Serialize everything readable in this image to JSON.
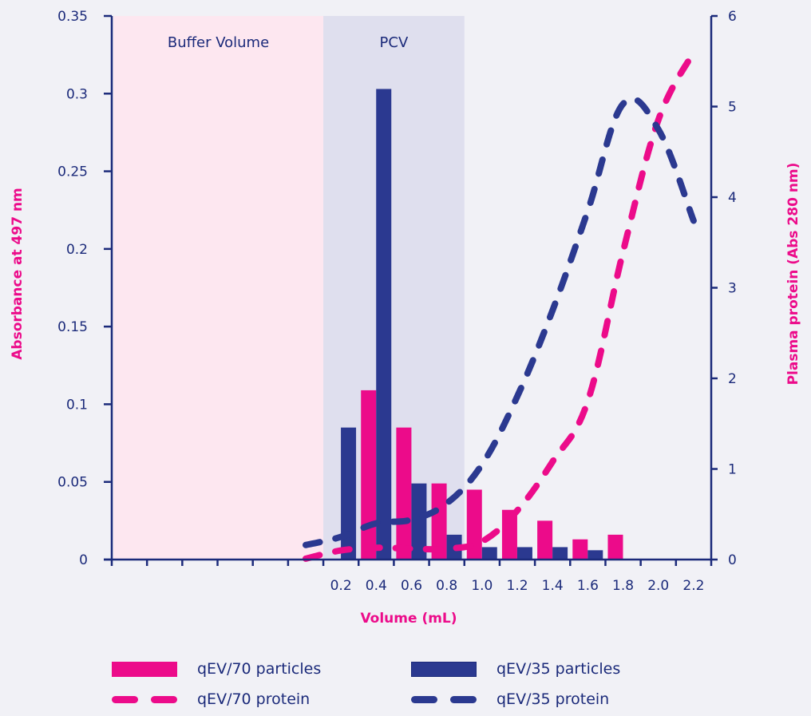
{
  "chart_data": {
    "type": "bar+line",
    "title": "",
    "xlabel": "Volume (mL)",
    "ylabel_left": "Absorbance at 497 nm",
    "ylabel_right": "Plasma protein (Abs 280 nm)",
    "ylim_left": [
      0,
      0.35
    ],
    "ylim_right": [
      0,
      6
    ],
    "yticks_left": [
      "0",
      "0.05",
      "0.1",
      "0.15",
      "0.2",
      "0.25",
      "0.3",
      "0.35"
    ],
    "yticks_right": [
      "0",
      "1",
      "2",
      "3",
      "4",
      "5",
      "6"
    ],
    "grid": false,
    "legend_position": "bottom",
    "categories": [
      "",
      "",
      "",
      "",
      "",
      "",
      "0.2",
      "0.4",
      "0.6",
      "0.8",
      "1.0",
      "1.2",
      "1.4",
      "1.6",
      "1.8",
      "2.0",
      "2.2"
    ],
    "regions": [
      {
        "label": "Buffer Volume",
        "from_slot": 0,
        "to_slot": 6,
        "color": "#fde7f0"
      },
      {
        "label": "PCV",
        "from_slot": 6,
        "to_slot": 10,
        "color": "#dfdfee"
      }
    ],
    "bar_series": [
      {
        "name": "qEV/70 particles",
        "color": "#ec0b8a",
        "axis": "left",
        "values": [
          null,
          null,
          null,
          null,
          null,
          null,
          0,
          0.109,
          0.085,
          0.049,
          0.045,
          0.032,
          0.025,
          0.013,
          0.016,
          0,
          0
        ]
      },
      {
        "name": "qEV/35 particles",
        "color": "#2b3990",
        "axis": "left",
        "values": [
          null,
          null,
          null,
          null,
          null,
          null,
          0.085,
          0.303,
          0.049,
          0.016,
          0.008,
          0.008,
          0.008,
          0.006,
          0,
          0,
          0
        ]
      }
    ],
    "line_series": [
      {
        "name": "qEV/70 protein",
        "color": "#ec0b8a",
        "axis": "right",
        "style": "dashed",
        "x": [
          "0.0",
          "0.2",
          "0.4",
          "0.6",
          "0.8",
          "1.0",
          "1.2",
          "1.4",
          "1.6",
          "1.8",
          "2.0",
          "2.2"
        ],
        "values": [
          0.01,
          0.1,
          0.13,
          0.12,
          0.12,
          0.2,
          0.54,
          1.08,
          1.75,
          3.4,
          4.85,
          5.6
        ]
      },
      {
        "name": "qEV/35 protein",
        "color": "#2b3990",
        "axis": "right",
        "style": "dashed",
        "x": [
          "0.0",
          "0.2",
          "0.4",
          "0.6",
          "0.8",
          "1.0",
          "1.2",
          "1.4",
          "1.6",
          "1.8",
          "2.0",
          "2.2"
        ],
        "values": [
          0.16,
          0.25,
          0.4,
          0.44,
          0.62,
          1.05,
          1.8,
          2.75,
          3.85,
          5.03,
          4.75,
          3.74
        ]
      }
    ]
  },
  "legend": [
    {
      "label": "qEV/70 particles",
      "kind": "bar",
      "color": "#ec0b8a"
    },
    {
      "label": "qEV/35 particles",
      "kind": "bar",
      "color": "#2b3990"
    },
    {
      "label": "qEV/70 protein",
      "kind": "line",
      "color": "#ec0b8a"
    },
    {
      "label": "qEV/35 protein",
      "kind": "line",
      "color": "#2b3990"
    }
  ],
  "colors": {
    "axis": "#1b2a7a",
    "accent": "#ec0b8a",
    "navy": "#2b3990",
    "background": "#f1f1f6"
  }
}
